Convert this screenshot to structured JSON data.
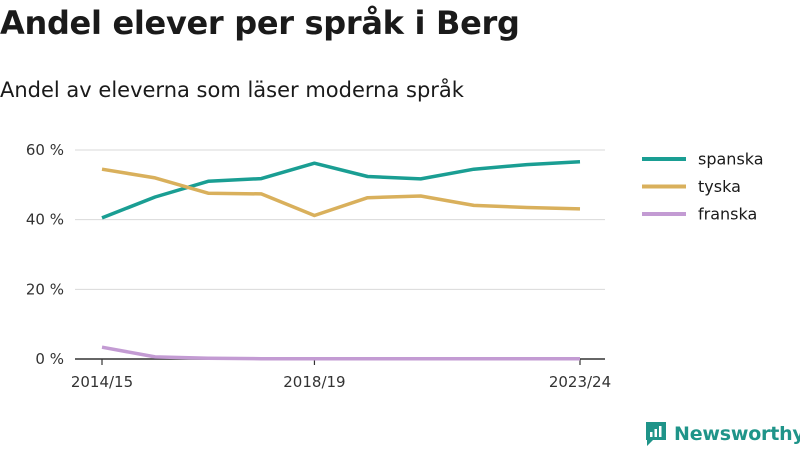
{
  "header": {
    "title": "Andel elever per språk i Berg",
    "subtitle": "Andel av eleverna som läser moderna språk"
  },
  "brand": {
    "name": "Newsworthy"
  },
  "chart_data": {
    "type": "line",
    "title": "Andel elever per språk i Berg",
    "subtitle": "Andel av eleverna som läser moderna språk",
    "x": [
      "2014/15",
      "2015/16",
      "2016/17",
      "2017/18",
      "2018/19",
      "2019/20",
      "2020/21",
      "2021/22",
      "2022/23",
      "2023/24"
    ],
    "x_tick_labels": [
      "2014/15",
      "2018/19",
      "2023/24"
    ],
    "y_ticks": [
      "0 %",
      "20 %",
      "40 %",
      "60 %"
    ],
    "ylim": [
      0,
      60
    ],
    "grid": true,
    "legend_position": "right",
    "series": [
      {
        "name": "spanska",
        "color": "#1a9e93",
        "values": [
          40.5,
          46.5,
          51,
          51.8,
          56.2,
          52.4,
          51.7,
          54.5,
          55.8,
          56.6
        ]
      },
      {
        "name": "tyska",
        "color": "#d9b05c",
        "values": [
          54.5,
          52,
          47.6,
          47.4,
          41.2,
          46.3,
          46.8,
          44.1,
          43.5,
          43.1
        ]
      },
      {
        "name": "franska",
        "color": "#c39bd3",
        "values": [
          3.4,
          0.6,
          0.2,
          0.1,
          0.1,
          0.1,
          0.1,
          0.1,
          0.1,
          0.1
        ]
      }
    ]
  }
}
